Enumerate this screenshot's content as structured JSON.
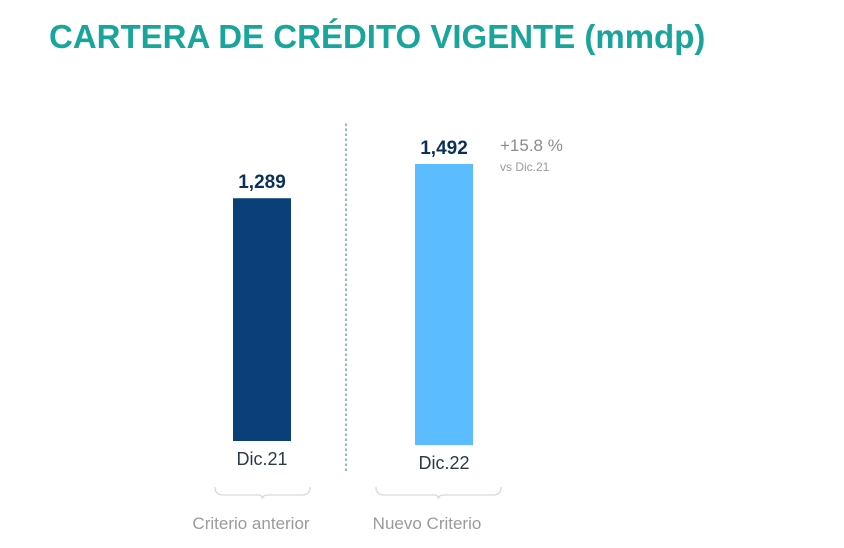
{
  "title": "CARTERA DE CRÉDITO VIGENTE (mmdp)",
  "chart_data": {
    "type": "bar",
    "categories": [
      "Dic.21",
      "Dic.22"
    ],
    "values": [
      1289,
      1492
    ],
    "value_labels": [
      "1,289",
      "1,492"
    ],
    "colors": [
      "#0a4079",
      "#5bbcff"
    ],
    "groups": [
      "Criterio anterior",
      "Nuevo Criterio"
    ],
    "annotation": {
      "main": "+15.8 %",
      "sub": "vs Dic.21"
    },
    "ylim": [
      0,
      1492
    ],
    "grid": false,
    "legend": "none",
    "separator_color": "#4a8fb0",
    "brace_color": "#d9d9d9"
  }
}
